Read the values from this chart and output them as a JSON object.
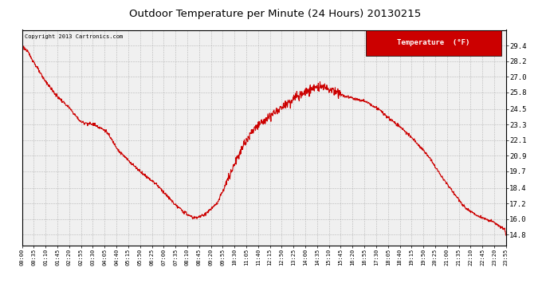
{
  "title": "Outdoor Temperature per Minute (24 Hours) 20130215",
  "copyright_text": "Copyright 2013 Cartronics.com",
  "legend_label": "Temperature  (°F)",
  "line_color": "#cc0000",
  "legend_bg": "#cc0000",
  "background_color": "#ffffff",
  "plot_bg": "#f0f0f0",
  "grid_color": "#aaaaaa",
  "y_min": 14.0,
  "y_max": 30.6,
  "y_ticks": [
    14.8,
    16.0,
    17.2,
    18.4,
    19.7,
    20.9,
    22.1,
    23.3,
    24.5,
    25.8,
    27.0,
    28.2,
    29.4
  ],
  "x_tick_labels": [
    "00:00",
    "00:35",
    "01:10",
    "01:45",
    "02:20",
    "02:55",
    "03:30",
    "04:05",
    "04:40",
    "05:15",
    "05:50",
    "06:25",
    "07:00",
    "07:35",
    "08:10",
    "08:45",
    "09:20",
    "09:55",
    "10:30",
    "11:05",
    "11:40",
    "12:15",
    "12:50",
    "13:25",
    "14:00",
    "14:35",
    "15:10",
    "15:45",
    "16:20",
    "16:55",
    "17:30",
    "18:05",
    "18:40",
    "19:15",
    "19:50",
    "20:25",
    "21:00",
    "21:35",
    "22:10",
    "22:45",
    "23:20",
    "23:55"
  ],
  "key_times_minutes": [
    0,
    20,
    60,
    100,
    140,
    175,
    215,
    250,
    290,
    330,
    360,
    400,
    435,
    460,
    490,
    510,
    540,
    580,
    620,
    660,
    690,
    730,
    770,
    800,
    835,
    860,
    890,
    930,
    960,
    990,
    1020,
    1060,
    1090,
    1130,
    1170,
    1210,
    1250,
    1290,
    1320,
    1360,
    1400,
    1435,
    1439
  ],
  "key_temps": [
    29.4,
    28.8,
    27.0,
    25.6,
    24.6,
    23.5,
    23.3,
    22.8,
    21.2,
    20.2,
    19.5,
    18.7,
    17.7,
    17.0,
    16.4,
    16.1,
    16.3,
    17.2,
    19.5,
    21.8,
    23.0,
    23.8,
    24.6,
    25.2,
    25.7,
    26.1,
    26.3,
    25.9,
    25.5,
    25.3,
    25.1,
    24.5,
    23.8,
    23.0,
    22.0,
    20.8,
    19.2,
    17.8,
    16.8,
    16.2,
    15.8,
    15.2,
    14.8
  ]
}
